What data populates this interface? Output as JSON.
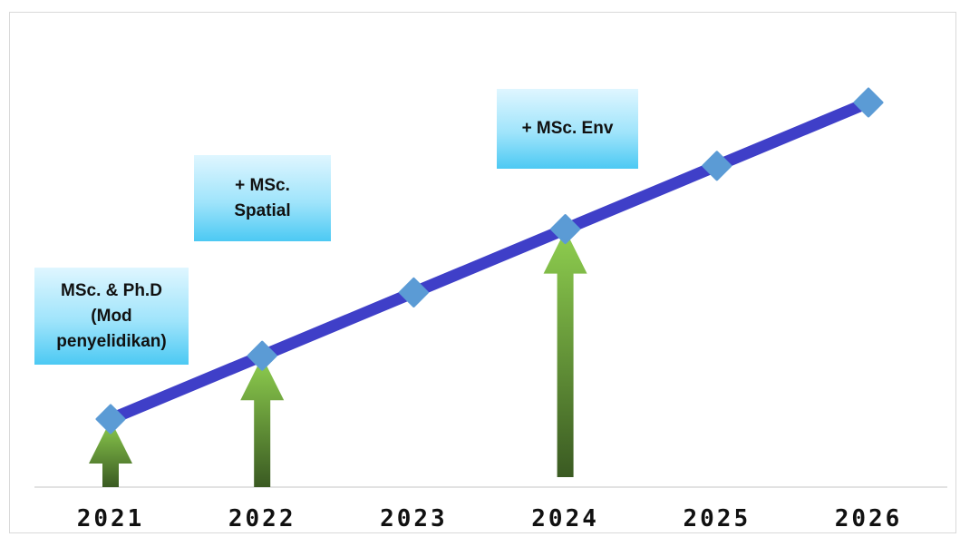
{
  "chart_data": {
    "type": "line",
    "title": "",
    "xlabel": "",
    "ylabel": "",
    "categories": [
      "2021",
      "2022",
      "2023",
      "2024",
      "2025",
      "2026"
    ],
    "series": [
      {
        "values": [
          1,
          2,
          3,
          4,
          5,
          6
        ]
      }
    ],
    "ylim": [
      0,
      7
    ],
    "grid": false,
    "legend": "none",
    "colors": {
      "line": "#3f3fc8",
      "marker": "#5b9bd5",
      "arrow_top": "#8fcf4f",
      "arrow_bottom": "#3a5a22"
    },
    "annotations": [
      {
        "text": "MSc. & Ph.D\n(Mod\npenyelidikan)",
        "at": "2021"
      },
      {
        "text": "+ MSc.\nSpatial",
        "at": "2022"
      },
      {
        "text": "+ MSc. Env",
        "at": "2024"
      }
    ],
    "arrows_at": [
      "2021",
      "2022",
      "2024"
    ]
  }
}
